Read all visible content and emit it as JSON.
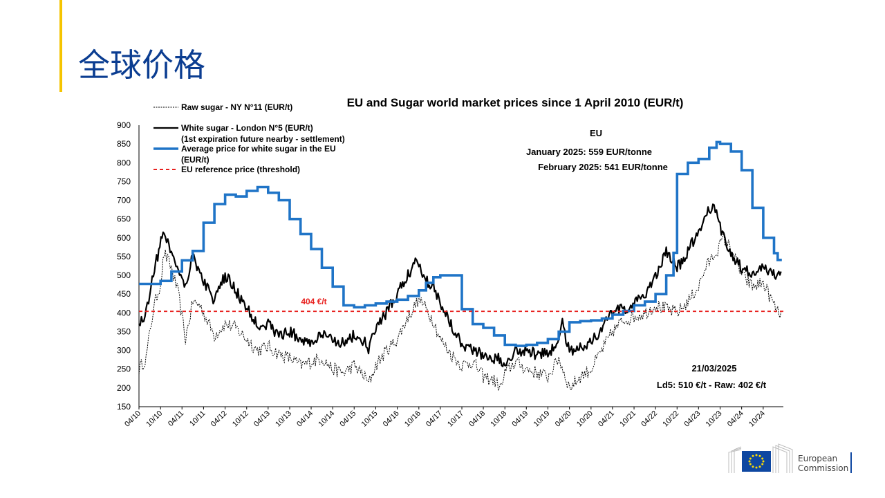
{
  "slide": {
    "title": "全球价格"
  },
  "chart_data": {
    "type": "line",
    "title": "EU and Sugar world market prices since 1 April 2010 (EUR/t)",
    "y_axis": {
      "min": 150,
      "max": 900,
      "step": 50
    },
    "x_axis": {
      "start": "2010-04-01",
      "end": "2025-03-21",
      "tick_labels": [
        "04/10",
        "10/10",
        "04/11",
        "10/11",
        "04/12",
        "10/12",
        "04/13",
        "10/13",
        "04/14",
        "10/14",
        "04/15",
        "10/15",
        "04/16",
        "10/16",
        "04/17",
        "10/17",
        "04/18",
        "10/18",
        "04/19",
        "10/19",
        "04/20",
        "10/20",
        "04/21",
        "10/21",
        "04/22",
        "10/22",
        "04/23",
        "10/23",
        "04/24",
        "10/24"
      ]
    },
    "legend": [
      {
        "key": "raw",
        "label": "Raw sugar - NY N°11 (EUR/t)",
        "color": "#000000",
        "style": "dotted"
      },
      {
        "key": "white",
        "label": "White sugar - London N°5 (EUR/t)",
        "sublabel": "(1st expiration future nearby - settlement)",
        "color": "#000000",
        "style": "solid"
      },
      {
        "key": "eu",
        "label": "Average price for white sugar in the EU",
        "sublabel": "(EUR/t)",
        "color": "#1f74c7",
        "style": "solid"
      },
      {
        "key": "ref",
        "label": "EU reference price  (threshold)",
        "color": "#e8201e",
        "style": "dashed"
      }
    ],
    "annotations": {
      "eu_heading": "EU",
      "eu_jan": "January 2025: 559 EUR/tonne",
      "eu_feb": "February 2025: 541 EUR/tonne",
      "ref_label": "404 €/t",
      "date": "21/03/2025",
      "latest": "Ld5: 510 €/t - Raw: 402 €/t"
    },
    "reference_price": 404,
    "series": [
      {
        "name": "Raw sugar - NY N°11 (EUR/t)",
        "x": [
          "2010-04",
          "2010-06",
          "2010-08",
          "2010-10",
          "2010-11",
          "2011-01",
          "2011-03",
          "2011-05",
          "2011-07",
          "2011-09",
          "2011-11",
          "2012-01",
          "2012-04",
          "2012-07",
          "2012-10",
          "2013-01",
          "2013-04",
          "2013-07",
          "2013-10",
          "2014-01",
          "2014-04",
          "2014-07",
          "2014-10",
          "2015-01",
          "2015-04",
          "2015-07",
          "2015-08",
          "2015-10",
          "2016-01",
          "2016-04",
          "2016-07",
          "2016-09",
          "2016-10",
          "2016-12",
          "2017-02",
          "2017-04",
          "2017-07",
          "2017-10",
          "2018-01",
          "2018-04",
          "2018-07",
          "2018-09",
          "2018-10",
          "2019-01",
          "2019-04",
          "2019-07",
          "2019-10",
          "2020-01",
          "2020-04",
          "2020-07",
          "2020-10",
          "2021-01",
          "2021-04",
          "2021-07",
          "2021-10",
          "2022-01",
          "2022-04",
          "2022-07",
          "2022-10",
          "2023-01",
          "2023-04",
          "2023-06",
          "2023-08",
          "2023-10",
          "2023-11",
          "2024-01",
          "2024-04",
          "2024-07",
          "2024-10",
          "2024-12",
          "2025-02",
          "2025-03"
        ],
        "values": [
          250,
          280,
          410,
          480,
          560,
          520,
          450,
          330,
          430,
          420,
          380,
          340,
          370,
          360,
          330,
          300,
          310,
          290,
          280,
          260,
          270,
          280,
          250,
          240,
          260,
          230,
          210,
          260,
          300,
          330,
          390,
          420,
          440,
          410,
          380,
          330,
          290,
          260,
          270,
          230,
          220,
          200,
          240,
          270,
          250,
          240,
          230,
          280,
          200,
          230,
          250,
          300,
          350,
          380,
          390,
          400,
          420,
          410,
          400,
          430,
          470,
          520,
          550,
          580,
          600,
          570,
          500,
          470,
          480,
          440,
          400,
          402
        ]
      },
      {
        "name": "White sugar - London N°5 (EUR/t)",
        "x": [
          "2010-04",
          "2010-06",
          "2010-08",
          "2010-11",
          "2011-01",
          "2011-03",
          "2011-05",
          "2011-07",
          "2011-09",
          "2011-11",
          "2012-01",
          "2012-04",
          "2012-07",
          "2012-10",
          "2013-01",
          "2013-04",
          "2013-07",
          "2013-10",
          "2014-01",
          "2014-04",
          "2014-07",
          "2014-10",
          "2015-01",
          "2015-04",
          "2015-07",
          "2015-08",
          "2015-10",
          "2016-01",
          "2016-04",
          "2016-07",
          "2016-09",
          "2016-10",
          "2016-12",
          "2017-02",
          "2017-04",
          "2017-07",
          "2017-10",
          "2018-01",
          "2018-04",
          "2018-07",
          "2018-10",
          "2019-01",
          "2019-04",
          "2019-07",
          "2019-10",
          "2020-01",
          "2020-02",
          "2020-04",
          "2020-07",
          "2020-10",
          "2021-01",
          "2021-04",
          "2021-07",
          "2021-10",
          "2022-01",
          "2022-04",
          "2022-07",
          "2022-10",
          "2023-01",
          "2023-04",
          "2023-06",
          "2023-08",
          "2023-10",
          "2023-11",
          "2024-01",
          "2024-04",
          "2024-07",
          "2024-10",
          "2024-12",
          "2025-02",
          "2025-03"
        ],
        "values": [
          370,
          400,
          510,
          620,
          560,
          520,
          470,
          560,
          500,
          470,
          430,
          500,
          460,
          410,
          370,
          370,
          340,
          350,
          330,
          320,
          340,
          330,
          320,
          340,
          320,
          300,
          360,
          400,
          450,
          500,
          540,
          530,
          490,
          470,
          430,
          370,
          320,
          300,
          290,
          280,
          270,
          300,
          300,
          290,
          290,
          330,
          370,
          300,
          310,
          320,
          360,
          400,
          410,
          420,
          450,
          500,
          560,
          520,
          560,
          620,
          660,
          690,
          630,
          600,
          560,
          520,
          500,
          520,
          510,
          500,
          510
        ]
      },
      {
        "name": "Average price for white sugar in the EU",
        "x": [
          "2010-04",
          "2010-10",
          "2011-01",
          "2011-04",
          "2011-07",
          "2011-10",
          "2012-01",
          "2012-04",
          "2012-07",
          "2012-10",
          "2013-01",
          "2013-04",
          "2013-07",
          "2013-10",
          "2014-01",
          "2014-04",
          "2014-07",
          "2014-10",
          "2015-01",
          "2015-04",
          "2015-07",
          "2015-10",
          "2016-01",
          "2016-04",
          "2016-07",
          "2016-10",
          "2016-12",
          "2017-02",
          "2017-04",
          "2017-07",
          "2017-09",
          "2017-10",
          "2018-01",
          "2018-04",
          "2018-07",
          "2018-10",
          "2019-01",
          "2019-04",
          "2019-07",
          "2019-10",
          "2020-01",
          "2020-04",
          "2020-07",
          "2020-10",
          "2021-01",
          "2021-04",
          "2021-07",
          "2021-10",
          "2022-01",
          "2022-04",
          "2022-07",
          "2022-09",
          "2022-10",
          "2023-01",
          "2023-04",
          "2023-07",
          "2023-09",
          "2023-10",
          "2024-01",
          "2024-04",
          "2024-07",
          "2024-10",
          "2025-01",
          "2025-02"
        ],
        "values": [
          477,
          485,
          510,
          540,
          565,
          640,
          690,
          715,
          710,
          725,
          735,
          720,
          700,
          650,
          610,
          570,
          520,
          470,
          420,
          415,
          420,
          425,
          430,
          435,
          445,
          460,
          480,
          495,
          500,
          500,
          500,
          410,
          370,
          360,
          340,
          315,
          312,
          315,
          320,
          330,
          350,
          375,
          378,
          380,
          385,
          395,
          405,
          420,
          430,
          450,
          500,
          560,
          770,
          800,
          810,
          840,
          855,
          850,
          830,
          780,
          680,
          600,
          559,
          541
        ]
      }
    ]
  }
}
